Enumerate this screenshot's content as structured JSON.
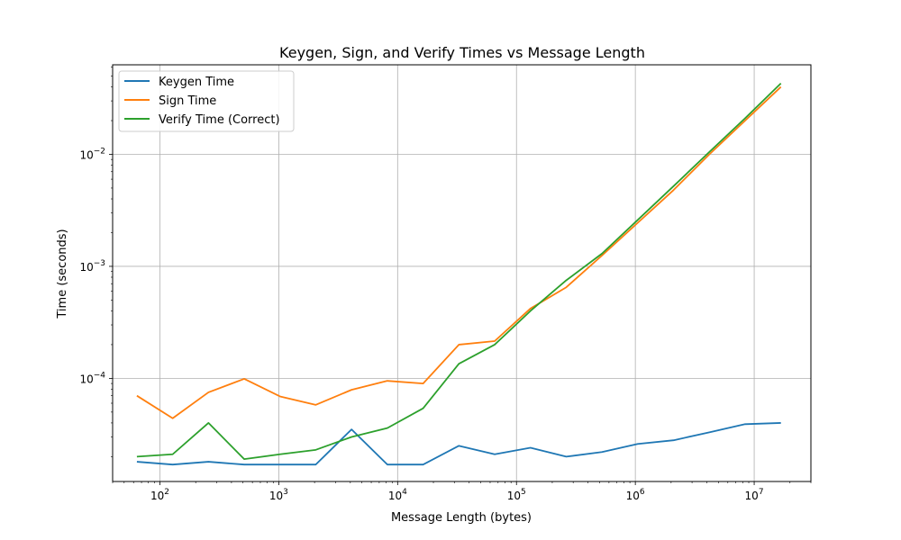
{
  "chart_data": {
    "type": "line",
    "title": "Keygen, Sign, and Verify Times vs Message Length",
    "xlabel": "Message Length (bytes)",
    "ylabel": "Time (seconds)",
    "xscale": "log",
    "yscale": "log",
    "xlim": [
      40,
      30000000
    ],
    "ylim": [
      1.2e-05,
      0.063
    ],
    "grid": true,
    "legend_position": "top-left",
    "x": [
      64,
      128,
      256,
      512,
      1024,
      2048,
      4096,
      8192,
      16384,
      32768,
      65536,
      131072,
      262144,
      524288,
      1048576,
      2097152,
      4194304,
      8388608,
      16777216
    ],
    "series": [
      {
        "name": "Keygen Time",
        "color": "#1f77b4",
        "values": [
          1.8e-05,
          1.7e-05,
          1.8e-05,
          1.7e-05,
          1.7e-05,
          1.7e-05,
          3.5e-05,
          1.7e-05,
          1.7e-05,
          2.5e-05,
          2.1e-05,
          2.4e-05,
          2e-05,
          2.2e-05,
          2.6e-05,
          2.8e-05,
          3.3e-05,
          3.9e-05,
          4e-05
        ]
      },
      {
        "name": "Sign Time",
        "color": "#ff7f0e",
        "values": [
          7e-05,
          4.4e-05,
          7.5e-05,
          9.9e-05,
          6.9e-05,
          5.8e-05,
          7.9e-05,
          9.5e-05,
          9e-05,
          0.0002,
          0.000215,
          0.00042,
          0.00065,
          0.00125,
          0.00245,
          0.0048,
          0.01,
          0.02,
          0.04
        ]
      },
      {
        "name": "Verify Time (Correct)",
        "color": "#2ca02c",
        "values": [
          2e-05,
          2.1e-05,
          4e-05,
          1.9e-05,
          2.1e-05,
          2.3e-05,
          3e-05,
          3.6e-05,
          5.4e-05,
          0.000135,
          0.0002,
          0.0004,
          0.00075,
          0.0013,
          0.0026,
          0.0052,
          0.0105,
          0.021,
          0.043
        ]
      }
    ],
    "xticks": [
      {
        "value": 100,
        "base": "10",
        "exp": "2"
      },
      {
        "value": 1000,
        "base": "10",
        "exp": "3"
      },
      {
        "value": 10000,
        "base": "10",
        "exp": "4"
      },
      {
        "value": 100000,
        "base": "10",
        "exp": "5"
      },
      {
        "value": 1000000,
        "base": "10",
        "exp": "6"
      },
      {
        "value": 10000000,
        "base": "10",
        "exp": "7"
      }
    ],
    "yticks": [
      {
        "value": 0.0001,
        "base": "10",
        "exp": "−4"
      },
      {
        "value": 0.001,
        "base": "10",
        "exp": "−3"
      },
      {
        "value": 0.01,
        "base": "10",
        "exp": "−2"
      }
    ]
  }
}
